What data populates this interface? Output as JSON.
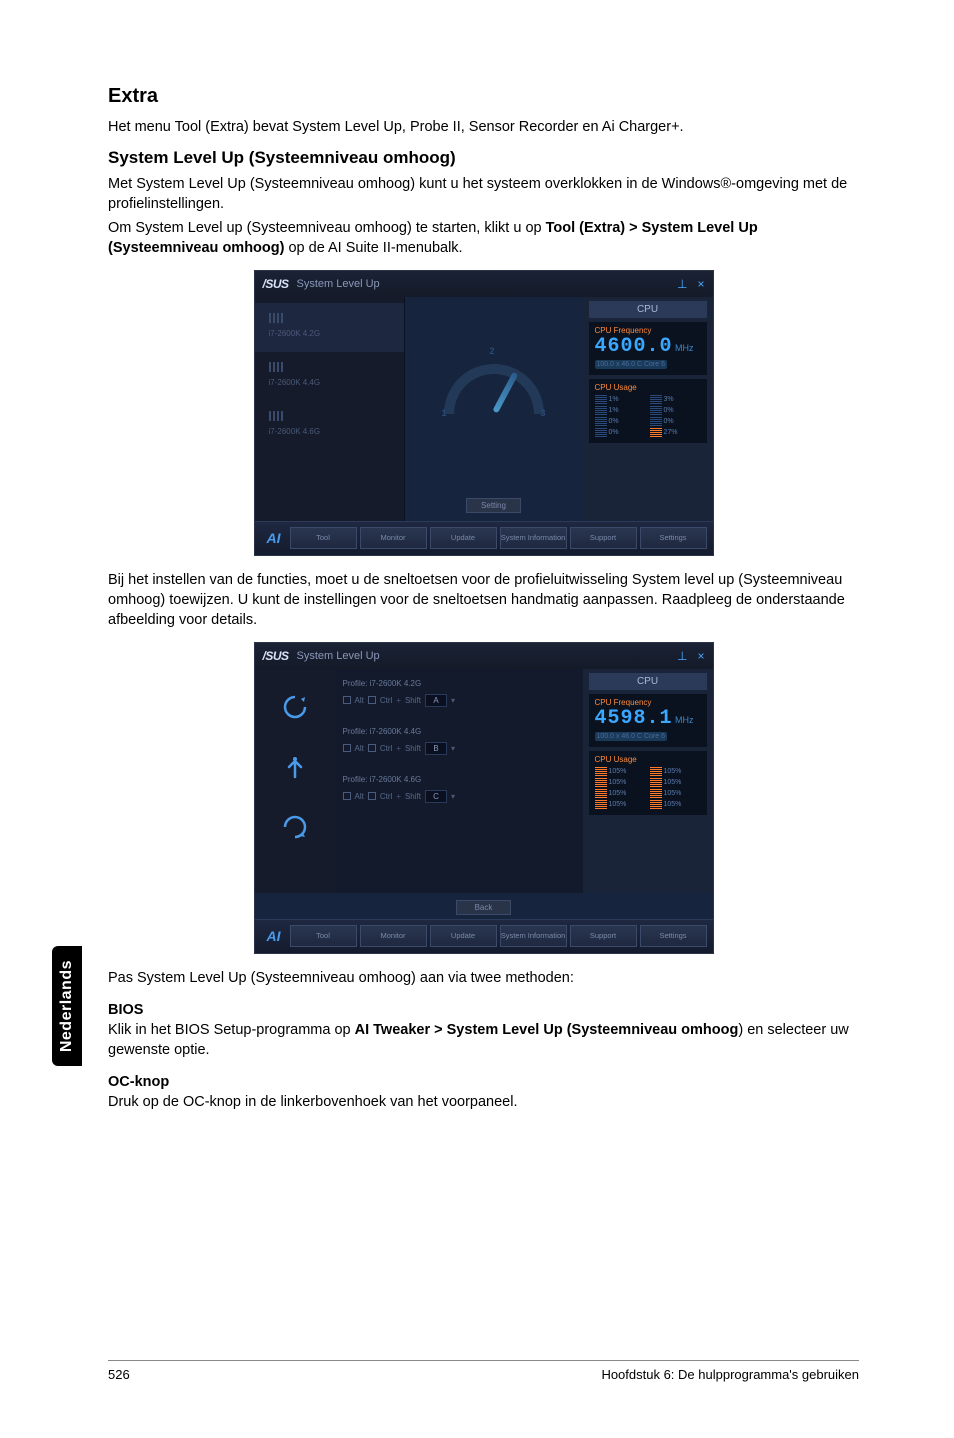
{
  "headings": {
    "extra": "Extra",
    "systemLevelUp": "System Level Up (Systeemniveau omhoog)",
    "bios": "BIOS",
    "ocKnop": "OC-knop"
  },
  "paragraphs": {
    "intro": "Het menu Tool (Extra) bevat System Level Up, Probe II, Sensor Recorder en Ai Charger+.",
    "slu1": "Met System Level Up (Systeemniveau omhoog) kunt u het systeem overklokken in de Windows®-omgeving met de profielinstellingen.",
    "slu2a": "Om System Level up (Systeemniveau omhoog) te starten, klikt u op ",
    "slu2b": "Tool (Extra) > System Level Up (Systeemniveau omhoog)",
    "slu2c": " op de AI Suite II-menubalk.",
    "hotkeys": "Bij het instellen van de functies, moet u de sneltoetsen voor de profieluitwisseling System level up (Systeemniveau omhoog) toewijzen. U kunt de instellingen voor de sneltoetsen handmatig aanpassen. Raadpleeg de onderstaande afbeelding voor details.",
    "twoMethods": "Pas System Level Up (Systeemniveau omhoog) aan via twee methoden:",
    "bios1a": "Klik in het BIOS Setup-programma op ",
    "bios1b": "AI Tweaker > System Level Up (Systeemniveau omhoog",
    "bios1c": ") en selecteer uw gewenste optie.",
    "ocknop1": "Druk op de OC-knop in de linkerbovenhoek van het voorpaneel."
  },
  "sideTab": "Nederlands",
  "footer": {
    "pageNum": "526",
    "chapter": "Hoofdstuk 6: De hulpprogramma's gebruiken"
  },
  "win1": {
    "logo": "/SUS",
    "title": "System Level Up",
    "minIcon": "⊥",
    "closeIcon": "×",
    "profiles": [
      {
        "label": "i7-2600K 4.2G",
        "active": true
      },
      {
        "label": "i7-2600K 4.4G",
        "active": false
      },
      {
        "label": "i7-2600K 4.6G",
        "active": false
      }
    ],
    "gauge": {
      "n1": "1",
      "n2": "2",
      "n3": "3"
    },
    "cpuHeader": "CPU",
    "freqLabel": "CPU Frequency",
    "freqVal": "4600.0",
    "freqUnit": "MHz",
    "freqSub": "100.0 x 46.0 C  Core 6",
    "usageLabel": "CPU Usage",
    "usageCells": [
      [
        {
          "v": "1%",
          "c": "b"
        },
        {
          "v": "3%",
          "c": "b"
        }
      ],
      [
        {
          "v": "1%",
          "c": "b"
        },
        {
          "v": "0%",
          "c": "b"
        }
      ],
      [
        {
          "v": "0%",
          "c": "b"
        },
        {
          "v": "0%",
          "c": "b"
        }
      ],
      [
        {
          "v": "0%",
          "c": "b"
        },
        {
          "v": "27%",
          "c": "o"
        }
      ]
    ],
    "settingBtn": "Setting",
    "bottomButtons": [
      "Tool",
      "Monitor",
      "Update",
      "System Information",
      "Support",
      "Settings"
    ]
  },
  "win2": {
    "logo": "/SUS",
    "title": "System Level Up",
    "minIcon": "⊥",
    "closeIcon": "×",
    "rows": [
      {
        "label": "Profile:  i7-2600K 4.2G",
        "key": "A",
        "iconColor": "#4a9aea"
      },
      {
        "label": "Profile:  i7-2600K 4.4G",
        "key": "B",
        "iconColor": "#4a9aea"
      },
      {
        "label": "Profile:  i7-2600K 4.6G",
        "key": "C",
        "iconColor": "#4a9aea"
      }
    ],
    "chkAlt": "Alt",
    "chkCtrl": "Ctrl",
    "chkShift": "Shift",
    "cpuHeader": "CPU",
    "freqLabel": "CPU Frequency",
    "freqVal": "4598.1",
    "freqUnit": "MHz",
    "freqSub": "100.0 x 46.0 C  Core 6",
    "usageLabel": "CPU Usage",
    "usageCells": [
      [
        {
          "v": "105%",
          "c": "o"
        },
        {
          "v": "105%",
          "c": "o"
        }
      ],
      [
        {
          "v": "105%",
          "c": "o"
        },
        {
          "v": "105%",
          "c": "o"
        }
      ],
      [
        {
          "v": "105%",
          "c": "o"
        },
        {
          "v": "105%",
          "c": "o"
        }
      ],
      [
        {
          "v": "105%",
          "c": "o"
        },
        {
          "v": "105%",
          "c": "o"
        }
      ]
    ],
    "backBtn": "Back",
    "bottomButtons": [
      "Tool",
      "Monitor",
      "Update",
      "System Information",
      "Support",
      "Settings"
    ]
  }
}
